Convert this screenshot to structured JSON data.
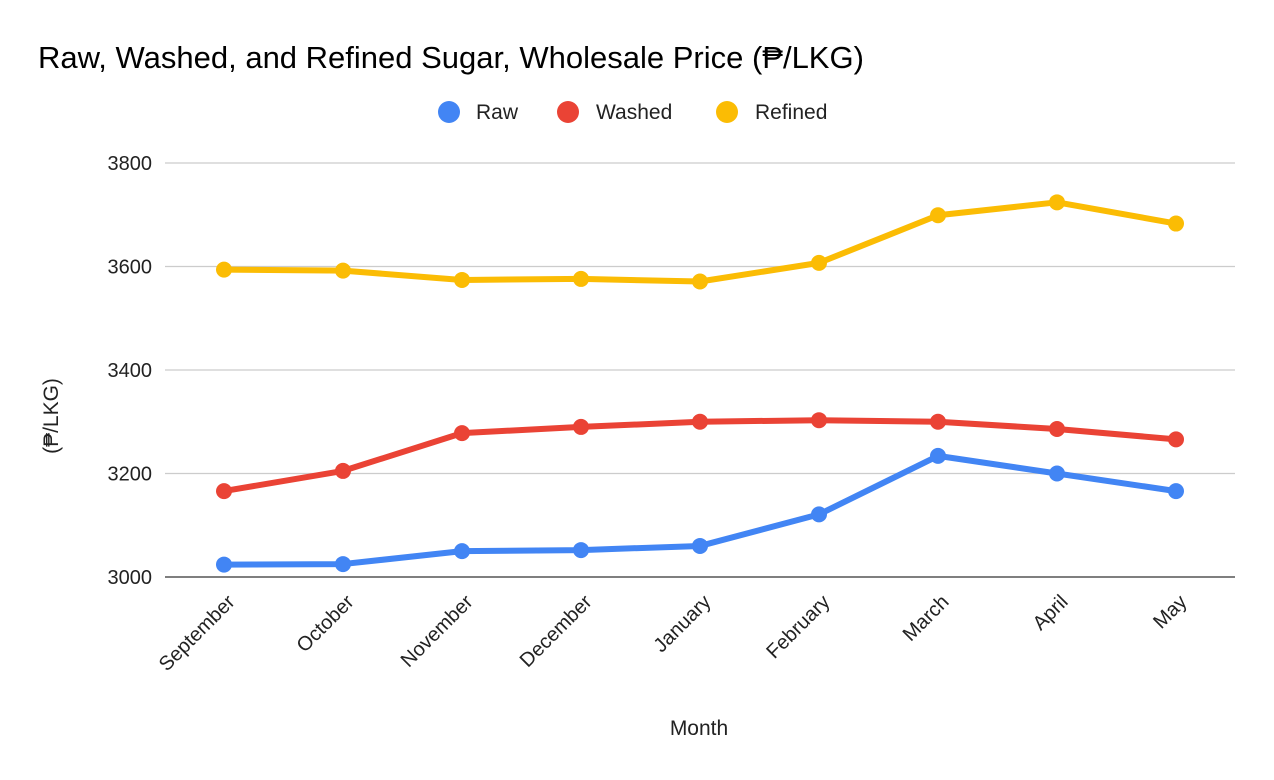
{
  "chart_data": {
    "type": "line",
    "title": "Raw, Washed, and Refined Sugar, Wholesale Price (₱/LKG)",
    "xlabel": "Month",
    "ylabel": "(₱/LKG)",
    "categories": [
      "September",
      "October",
      "November",
      "December",
      "January",
      "February",
      "March",
      "April",
      "May"
    ],
    "yticks": [
      "3000",
      "3200",
      "3400",
      "3600",
      "3800"
    ],
    "ylim": [
      3000,
      3800
    ],
    "grid": true,
    "legend_position": "top-center",
    "series": [
      {
        "name": "Raw",
        "color": "#4285f4",
        "values": [
          3024,
          3025,
          3050,
          3052,
          3060,
          3121,
          3234,
          3200,
          3166
        ]
      },
      {
        "name": "Washed",
        "color": "#ea4335",
        "values": [
          3166,
          3205,
          3278,
          3290,
          3300,
          3303,
          3300,
          3286,
          3266
        ]
      },
      {
        "name": "Refined",
        "color": "#fbbc04",
        "values": [
          3594,
          3592,
          3574,
          3576,
          3571,
          3607,
          3699,
          3724,
          3683
        ]
      }
    ]
  }
}
